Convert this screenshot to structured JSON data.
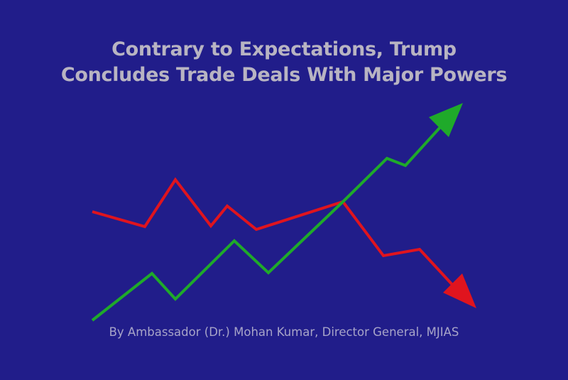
{
  "title": {
    "line1": "Contrary to Expectations, Trump",
    "line2": "Concludes Trade Deals With Major Powers"
  },
  "byline": "By Ambassador (Dr.) Mohan Kumar, Director General, MJIAS",
  "colors": {
    "background": "#211d8a",
    "title": "#b8b4c2",
    "byline": "#a7a4c8",
    "rising_line": "#1faa2a",
    "falling_line": "#e0141e"
  },
  "icons": {
    "rising": "trend-up-arrow-icon",
    "falling": "trend-down-arrow-icon"
  }
}
